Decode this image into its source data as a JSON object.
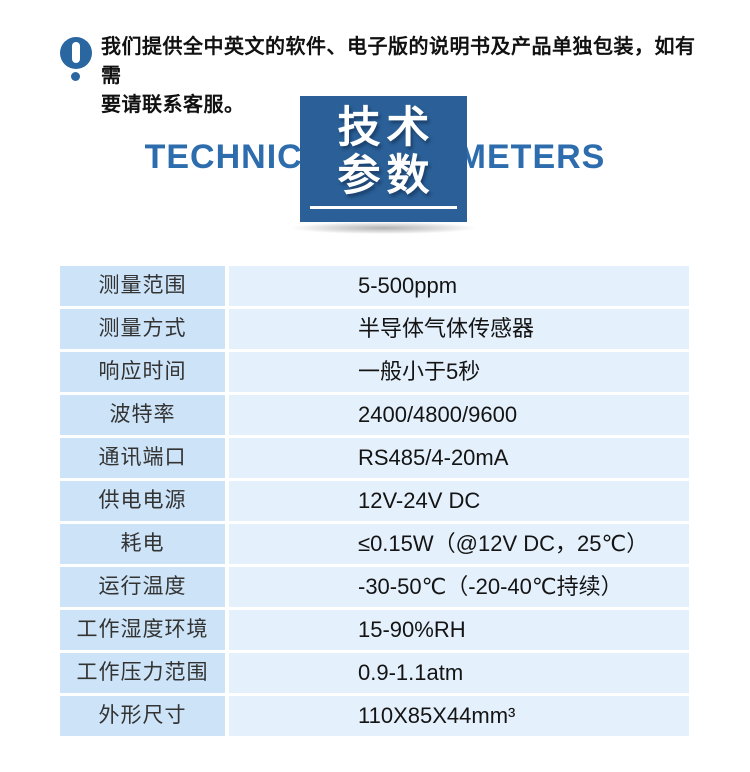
{
  "notice": {
    "icon": "exclamation-icon",
    "line1": "我们提供全中英文的软件、电子版的说明书及产品单独包装，如有需",
    "line2": "要请联系客服。"
  },
  "title": {
    "en": "TECHNICAL PARAMETERS",
    "zh_line1": "技术",
    "zh_line2": "参数"
  },
  "colors": {
    "accent_blue": "#2a6097",
    "icon_blue": "#2a67a0",
    "title_en_blue": "#2e6dad",
    "label_cell_bg": "#cde4f8",
    "value_cell_bg": "#e4f0fb"
  },
  "spec_table": {
    "rows": [
      {
        "label": "测量范围",
        "value": "5-500ppm"
      },
      {
        "label": "测量方式",
        "value": "半导体气体传感器"
      },
      {
        "label": "响应时间",
        "value": "一般小于5秒"
      },
      {
        "label": "波特率",
        "value": "2400/4800/9600"
      },
      {
        "label": "通讯端口",
        "value": "RS485/4-20mA"
      },
      {
        "label": "供电电源",
        "value": "12V-24V DC"
      },
      {
        "label": "耗电",
        "value": "≤0.15W（@12V DC，25℃）"
      },
      {
        "label": "运行温度",
        "value": "-30-50℃（-20-40℃持续）"
      },
      {
        "label": "工作湿度环境",
        "value": "15-90%RH"
      },
      {
        "label": "工作压力范围",
        "value": "0.9-1.1atm"
      },
      {
        "label": "外形尺寸",
        "value": "110X85X44mm³"
      }
    ]
  }
}
